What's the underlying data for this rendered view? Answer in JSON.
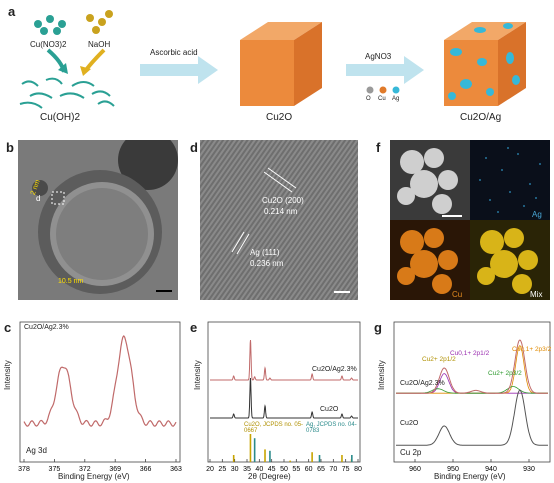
{
  "panels": {
    "a": {
      "label": "a",
      "reagent1": "Cu(NO3)2",
      "reagent2": "NaOH",
      "intermediate": "Cu(OH)2",
      "step1": "Ascorbic acid",
      "product1": "Cu2O",
      "step2": "AgNO3",
      "legend": [
        "O",
        "Cu",
        "Ag"
      ],
      "product2": "Cu2O/Ag"
    },
    "b": {
      "label": "b",
      "box_label": "d",
      "dim1": "2 nm",
      "dim2": "10.5 nm"
    },
    "c": {
      "label": "c",
      "sample": "Cu2O/Ag2.3%",
      "ylabel": "Intensity",
      "xlabel": "Binding Energy (eV)",
      "peak_label": "Ag 3d"
    },
    "d": {
      "label": "d",
      "lattice1_phase": "Cu2O (200)",
      "lattice1_d": "0.214 nm",
      "lattice2_phase": "Ag (111)",
      "lattice2_d": "0.236 nm"
    },
    "e": {
      "label": "e",
      "curve1": "Cu2O/Ag2.3%",
      "curve2": "Cu2O",
      "ref1": "Cu2O, JCPDS no. 05-0667",
      "ref2": "Ag, JCPDS no. 04-0783",
      "ylabel": "Intensity",
      "xlabel": "2θ (Degree)"
    },
    "f": {
      "label": "f",
      "tile2": "Ag",
      "tile3": "Cu",
      "tile4": "Mix"
    },
    "g": {
      "label": "g",
      "curve1": "Cu2O/Ag2.3%",
      "curve2": "Cu2O",
      "xlabel": "Binding Energy (eV)",
      "ylabel": "Intensity",
      "peak_label": "Cu 2p",
      "ann": [
        "Cu2+ 2p1/2",
        "Cu0,1+ 2p1/2",
        "Cu2+ 2p3/2",
        "Cu0,1+ 2p3/2"
      ]
    }
  },
  "chart_data": [
    {
      "type": "line",
      "title": "",
      "xlabel": "Binding Energy (eV)",
      "ylabel": "Intensity",
      "xlim": [
        378,
        363
      ],
      "x_ticks": [
        378,
        375,
        372,
        369,
        366,
        363
      ],
      "series": [
        {
          "name": "Cu2O/Ag2.3%",
          "peaks": [
            {
              "x": 374.1,
              "rel_intensity": 0.65
            },
            {
              "x": 368.1,
              "rel_intensity": 0.95
            }
          ]
        }
      ],
      "annotation": "Ag 3d",
      "colors": {
        "line": "#c06a6a"
      }
    },
    {
      "type": "line",
      "title": "",
      "xlabel": "2θ (Degree)",
      "ylabel": "Intensity",
      "xlim": [
        20,
        80
      ],
      "x_ticks": [
        20,
        25,
        30,
        35,
        40,
        45,
        50,
        55,
        60,
        65,
        70,
        75,
        80
      ],
      "series": [
        {
          "name": "Cu2O/Ag2.3%",
          "peaks": [
            {
              "x": 29.6,
              "rel_intensity": 0.1
            },
            {
              "x": 36.4,
              "rel_intensity": 1.0
            },
            {
              "x": 38.1,
              "rel_intensity": 0.08
            },
            {
              "x": 42.3,
              "rel_intensity": 0.3
            },
            {
              "x": 44.3,
              "rel_intensity": 0.05
            },
            {
              "x": 61.4,
              "rel_intensity": 0.15
            },
            {
              "x": 73.5,
              "rel_intensity": 0.1
            },
            {
              "x": 77.4,
              "rel_intensity": 0.05
            }
          ]
        },
        {
          "name": "Cu2O",
          "peaks": [
            {
              "x": 29.6,
              "rel_intensity": 0.1
            },
            {
              "x": 36.4,
              "rel_intensity": 1.0
            },
            {
              "x": 42.3,
              "rel_intensity": 0.3
            },
            {
              "x": 61.4,
              "rel_intensity": 0.15
            },
            {
              "x": 73.5,
              "rel_intensity": 0.1
            },
            {
              "x": 77.4,
              "rel_intensity": 0.05
            }
          ]
        }
      ],
      "references": [
        {
          "name": "Cu2O, JCPDS no. 05-0667",
          "color": "#c8a400",
          "lines": [
            {
              "x": 29.6,
              "h": 0.25
            },
            {
              "x": 36.4,
              "h": 1.0
            },
            {
              "x": 42.3,
              "h": 0.45
            },
            {
              "x": 52.5,
              "h": 0.05
            },
            {
              "x": 61.4,
              "h": 0.35
            },
            {
              "x": 73.5,
              "h": 0.25
            },
            {
              "x": 77.4,
              "h": 0.1
            }
          ]
        },
        {
          "name": "Ag, JCPDS no. 04-0783",
          "color": "#2a8a8a",
          "lines": [
            {
              "x": 38.1,
              "h": 0.85
            },
            {
              "x": 44.3,
              "h": 0.4
            },
            {
              "x": 64.4,
              "h": 0.25
            },
            {
              "x": 77.5,
              "h": 0.25
            }
          ]
        }
      ]
    },
    {
      "type": "line",
      "title": "",
      "xlabel": "Binding Energy (eV)",
      "ylabel": "Intensity",
      "xlim": [
        965,
        925
      ],
      "x_ticks": [
        960,
        950,
        940,
        930
      ],
      "series": [
        {
          "name": "Cu2O/Ag2.3%",
          "peaks": [
            {
              "x": 952.3,
              "rel_intensity": 0.45
            },
            {
              "x": 944,
              "rel_intensity": 0.05
            },
            {
              "x": 932.4,
              "rel_intensity": 0.95
            }
          ]
        },
        {
          "name": "Cu2O",
          "peaks": [
            {
              "x": 952.3,
              "rel_intensity": 0.35
            },
            {
              "x": 932.4,
              "rel_intensity": 1.0
            }
          ]
        }
      ],
      "annotation": "Cu 2p",
      "colors": {
        "fit1": "#9b2fb0",
        "fit2": "#e08a00",
        "fit3": "#2f9a2f",
        "envelope": "#c06a6a"
      }
    }
  ]
}
